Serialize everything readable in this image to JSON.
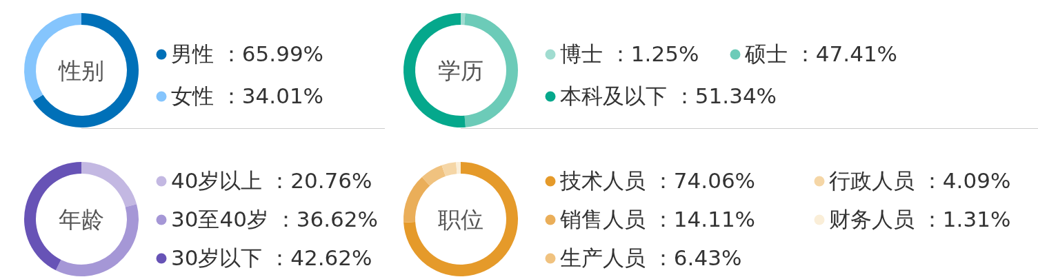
{
  "chart_data": [
    {
      "type": "donut",
      "title": "性别",
      "legend": "right",
      "categories": [
        "男性",
        "女性"
      ],
      "values": [
        65.99,
        34.01
      ],
      "value_labels": [
        "：65.99%",
        "：34.01%"
      ],
      "colors": [
        "#0070b8",
        "#85c5fd"
      ]
    },
    {
      "type": "donut",
      "title": "学历",
      "legend": "right",
      "categories": [
        "博士",
        "硕士",
        "本科及以下"
      ],
      "values": [
        1.25,
        47.41,
        51.34
      ],
      "value_labels": [
        "：1.25%",
        "：47.41%",
        "：51.34%"
      ],
      "colors": [
        "#a0dcd0",
        "#6ccbb8",
        "#05a88c"
      ]
    },
    {
      "type": "donut",
      "title": "年龄",
      "legend": "right",
      "categories": [
        "40岁以上",
        "30至40岁",
        "30岁以下"
      ],
      "values": [
        20.76,
        36.62,
        42.62
      ],
      "value_labels": [
        "：20.76%",
        "：36.62%",
        "：42.62%"
      ],
      "colors": [
        "#c3b8e2",
        "#a597d6",
        "#6753b6"
      ]
    },
    {
      "type": "donut",
      "title": "职位",
      "legend": "right",
      "categories": [
        "技术人员",
        "销售人员",
        "生产人员",
        "行政人员",
        "财务人员"
      ],
      "values": [
        74.06,
        14.11,
        6.43,
        4.09,
        1.31
      ],
      "value_labels": [
        "：74.06%",
        "：14.11%",
        "：6.43%",
        "：4.09%",
        "：1.31%"
      ],
      "colors": [
        "#e59a2a",
        "#eaae59",
        "#f0c27f",
        "#f5d6a6",
        "#faeed8"
      ]
    }
  ]
}
